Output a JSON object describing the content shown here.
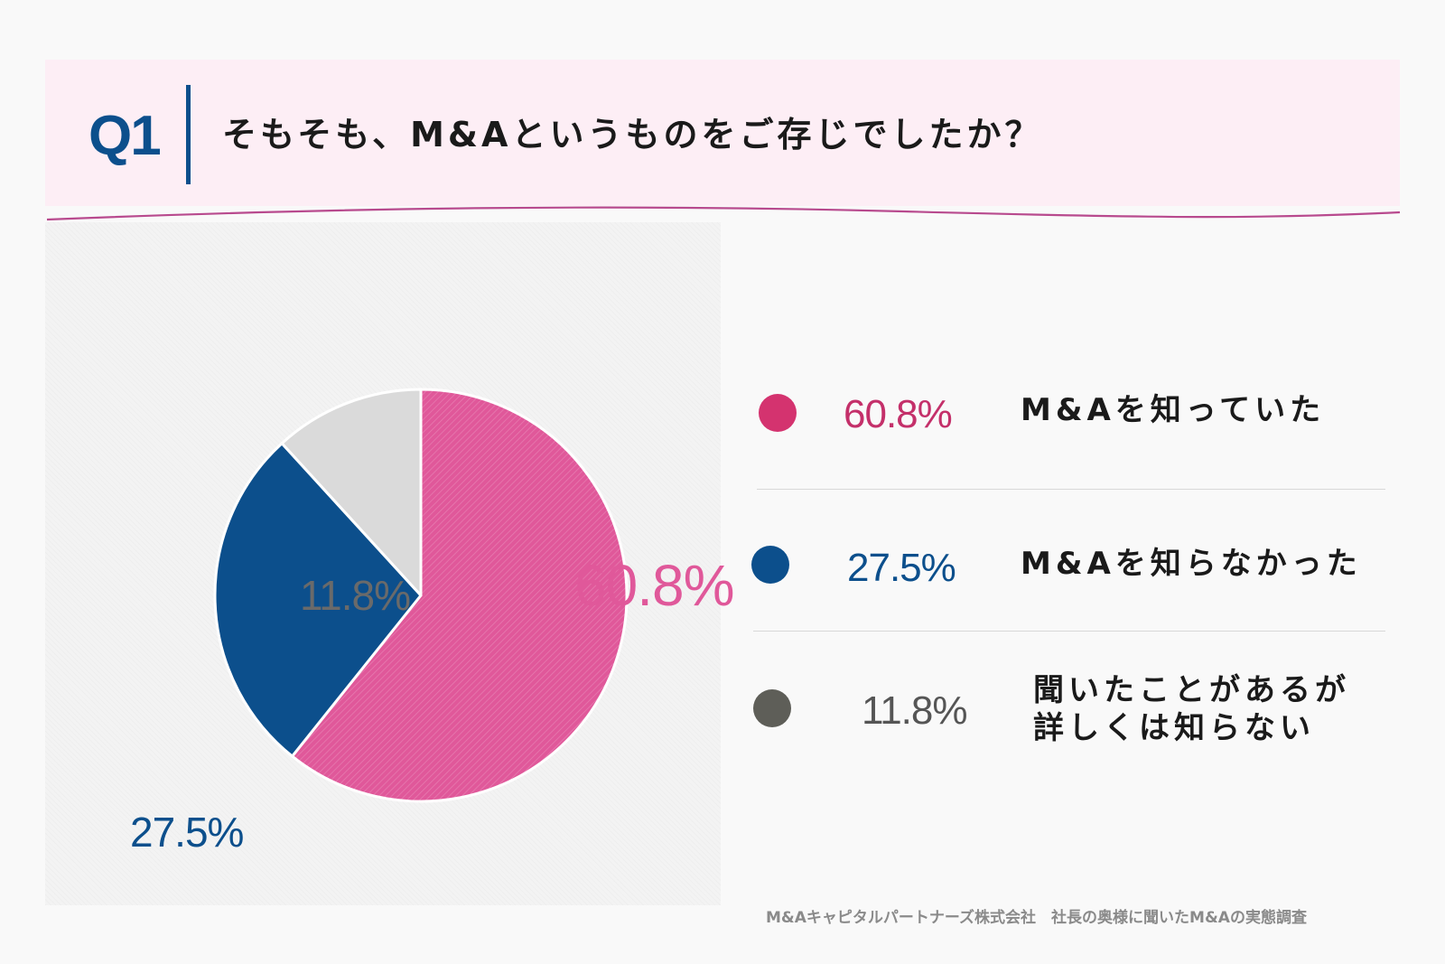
{
  "header": {
    "question_number": "Q1",
    "question_text": "そもそも、M&Aというものをご存じでしたか？"
  },
  "chart_data": {
    "type": "pie",
    "title": "そもそも、M&Aというものをご存じでしたか？",
    "slices": [
      {
        "label": "M&Aを知っていた",
        "value": 60.8,
        "display": "60.8%",
        "color": "#e0589a"
      },
      {
        "label": "M&Aを知らなかった",
        "value": 27.5,
        "display": "27.5%",
        "color": "#0c4f8c"
      },
      {
        "label": "聞いたことがあるが 詳しくは知らない",
        "value": 11.8,
        "display": "11.8%",
        "color": "#dadada"
      }
    ],
    "start": "12 o'clock",
    "direction": "clockwise"
  },
  "legend": {
    "items": [
      {
        "percent": "60.8%",
        "label": "M&Aを知っていた",
        "dot_color": "#d4336f",
        "text_color": "#c4306a"
      },
      {
        "percent": "27.5%",
        "label": "M&Aを知らなかった",
        "dot_color": "#0c4f8c",
        "text_color": "#0c4f8c"
      },
      {
        "percent": "11.8%",
        "label_line1": "聞いたことがあるが",
        "label_line2": "詳しくは知らない",
        "dot_color": "#5e5e58",
        "text_color": "#555555"
      }
    ]
  },
  "footer": {
    "source": "M&Aキャピタルパートナーズ株式会社　社長の奥様に聞いたM&Aの実態調査"
  }
}
